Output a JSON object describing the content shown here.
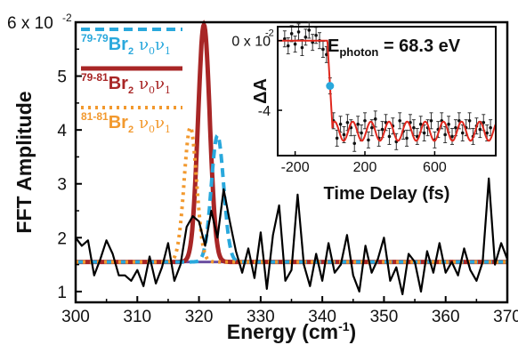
{
  "chart_data": [
    {
      "type": "line",
      "xlabel": "Energy (cm",
      "xlabel_sup": "-1",
      "xlabel_close": ")",
      "ylabel": "FFT Amplitude",
      "xlim": [
        300,
        370
      ],
      "ylim": [
        0.8,
        6.0
      ],
      "x_ticks": [
        300,
        310,
        320,
        330,
        340,
        350,
        360,
        370
      ],
      "y_ticks": [
        1,
        2,
        3,
        4,
        5,
        6
      ],
      "y_tick_labels": [
        "1",
        "2",
        "3",
        "4",
        "5",
        "6 x 10"
      ],
      "y_top_exponent": "-2",
      "legend_position": "top-left",
      "baseline": {
        "color": "#6b4fa0",
        "value": 1.55
      },
      "series": [
        {
          "style": "solid-thin",
          "color": "#000000",
          "x": [
            300,
            301,
            302,
            303,
            304,
            305,
            306,
            307,
            308,
            309,
            310,
            311,
            312,
            313,
            314,
            315,
            316,
            317,
            318,
            319,
            320,
            321,
            322,
            323,
            324,
            325,
            326,
            327,
            328,
            329,
            330,
            331,
            332,
            333,
            334,
            335,
            336,
            337,
            338,
            339,
            340,
            341,
            342,
            343,
            344,
            345,
            346,
            347,
            348,
            349,
            350,
            351,
            352,
            353,
            354,
            355,
            356,
            357,
            358,
            359,
            360,
            361,
            362,
            363,
            364,
            365,
            366,
            367,
            368,
            369,
            370
          ],
          "values": [
            2.0,
            1.85,
            1.95,
            1.3,
            1.6,
            1.95,
            1.7,
            1.3,
            1.3,
            1.2,
            1.4,
            1.1,
            1.65,
            1.15,
            1.45,
            1.9,
            1.2,
            1.5,
            2.2,
            2.4,
            2.3,
            1.85,
            2.5,
            2.0,
            2.9,
            2.3,
            1.75,
            1.35,
            1.8,
            1.25,
            2.1,
            1.05,
            2.05,
            2.6,
            1.2,
            1.4,
            2.8,
            1.5,
            1.1,
            1.7,
            1.2,
            1.9,
            1.35,
            1.5,
            2.05,
            1.3,
            1.0,
            1.85,
            1.35,
            1.6,
            2.0,
            1.2,
            1.45,
            0.95,
            1.7,
            1.55,
            1.0,
            1.75,
            1.35,
            1.9,
            1.35,
            1.55,
            1.3,
            1.8,
            1.4,
            1.2,
            1.55,
            3.1,
            1.5,
            1.9,
            1.6
          ]
        },
        {
          "name_iso": "79-81",
          "name_mol": "Br",
          "name_sub": "2",
          "mode": "ν",
          "mode_sub_a": "0",
          "mode_sub_b": "1",
          "style": "solid",
          "color": "#a82626",
          "peak_center": 320.8,
          "peak_amplitude": 5.95,
          "peak_width": 0.95
        },
        {
          "name_iso": "79-79",
          "name_mol": "Br",
          "name_sub": "2",
          "mode": "ν",
          "mode_sub_a": "0",
          "mode_sub_b": "1",
          "style": "dashed",
          "color": "#29a8dc",
          "peak_center": 323.0,
          "peak_amplitude": 3.9,
          "peak_width": 1.0
        },
        {
          "name_iso": "81-81",
          "name_mol": "Br",
          "name_sub": "2",
          "mode": "ν",
          "mode_sub_a": "0",
          "mode_sub_b": "1",
          "style": "dotted",
          "color": "#f2992e",
          "peak_center": 318.6,
          "peak_amplitude": 4.05,
          "peak_width": 1.0
        }
      ]
    },
    {
      "type": "line",
      "title_text": "E",
      "title_sub": "photon",
      "title_value": " = 68.3 eV",
      "xlabel": "Time Delay (fs)",
      "ylabel": "ΔA",
      "xlim": [
        -300,
        950
      ],
      "ylim": [
        -6.6,
        0.8
      ],
      "x_ticks": [
        -200,
        200,
        600
      ],
      "y_ticks": [
        0,
        -4
      ],
      "y_tick_labels": [
        "0 x 10",
        "-4"
      ],
      "y_top_exponent": "-2",
      "marker_point": {
        "x": 0,
        "y": -2.6,
        "color": "#29a8dc"
      },
      "fit": {
        "color": "#e0281e",
        "step_time": 0,
        "pre_level": 0,
        "post_level": -5.2,
        "osc_amplitude": 0.55,
        "osc_period_fs": 104
      },
      "points": {
        "x": [
          -260,
          -240,
          -220,
          -200,
          -180,
          -160,
          -140,
          -120,
          -100,
          -80,
          -60,
          -40,
          -20,
          0,
          20,
          40,
          60,
          80,
          100,
          120,
          140,
          160,
          180,
          200,
          220,
          240,
          260,
          280,
          300,
          320,
          340,
          360,
          380,
          400,
          420,
          440,
          460,
          480,
          500,
          520,
          540,
          560,
          580,
          600,
          620,
          640,
          660,
          680,
          700,
          720,
          740,
          760,
          780,
          800,
          820,
          840,
          860,
          880,
          900,
          920
        ],
        "y": [
          0.1,
          -0.3,
          0.4,
          -0.2,
          0.5,
          -0.4,
          0.2,
          0.6,
          -0.1,
          0.3,
          0.0,
          -0.5,
          -0.8,
          -2.6,
          -4.6,
          -5.6,
          -4.8,
          -5.4,
          -4.7,
          -5.0,
          -5.9,
          -4.8,
          -5.3,
          -4.6,
          -5.7,
          -5.0,
          -4.5,
          -5.6,
          -5.1,
          -4.7,
          -5.5,
          -4.9,
          -5.8,
          -4.6,
          -5.2,
          -5.6,
          -4.7,
          -5.0,
          -5.5,
          -4.8,
          -5.3,
          -5.0,
          -4.6,
          -5.7,
          -5.1,
          -4.6,
          -5.4,
          -4.8,
          -5.5,
          -5.0,
          -4.6,
          -5.3,
          -5.0,
          -4.6,
          -5.5,
          -4.9,
          -5.1,
          -4.7,
          -5.3,
          -5.0
        ]
      }
    }
  ]
}
